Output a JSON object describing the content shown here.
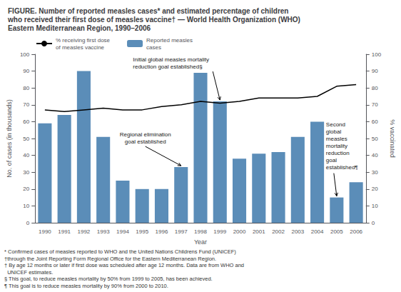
{
  "chart_data": {
    "type": "bar",
    "title": "FIGURE. Number of reported measles cases* and estimated percentage of children\nwho received their first dose of measles vaccine† — World Health Organization (WHO)\nEastern Mediterranean Region, 1990–2006",
    "categories": [
      "1990",
      "1991",
      "1992",
      "1993",
      "1994",
      "1995",
      "1996",
      "1997",
      "1998",
      "1999",
      "2000",
      "2001",
      "2002",
      "2003",
      "2004",
      "2005",
      "2006"
    ],
    "series": [
      {
        "name": "% receiving first dose\nof measles vaccine",
        "type": "line",
        "color": "#000000",
        "axis": "y2",
        "values": [
          67,
          66,
          67,
          68,
          67,
          67,
          69,
          70,
          72,
          71,
          72,
          74,
          74,
          74,
          75,
          81,
          82
        ]
      },
      {
        "name": "Reported measles\ncases",
        "type": "bar",
        "color": "#5b8db8",
        "values": [
          59,
          64,
          90,
          51,
          25,
          20,
          20,
          33,
          89,
          72,
          38,
          41,
          42,
          51,
          60,
          15,
          24
        ]
      }
    ],
    "xlabel": "Year",
    "ylabel": "No. of cases (in thousands)",
    "y2label": "% vaccinated",
    "ylim": [
      0,
      100
    ],
    "yticks": [
      0,
      10,
      20,
      30,
      40,
      50,
      60,
      70,
      80,
      90,
      100
    ],
    "y2lim": [
      0,
      100
    ],
    "y2ticks": [
      0,
      10,
      20,
      30,
      40,
      50,
      60,
      70,
      80,
      90,
      100
    ],
    "grid": false,
    "legend": "upper left",
    "annotations": [
      {
        "text": "Regional elimination\ngoal established",
        "x": "1997",
        "y": 33
      },
      {
        "text": "Initial global measles mortality\nreduction goal established§",
        "x": "1999",
        "y": 72
      },
      {
        "text": "Second\nglobal\nmeasles\nmortality\nreduction\ngoal\nestablished¶",
        "x": "2005",
        "y": 15
      }
    ],
    "footnotes": "* Confirmed cases of measles reported to WHO and the United Nations Childrens Fund (UNICEF)\n†through the Joint Reporting Form Regional Office for the Eastern Mediterranean Region.\n† By age 12 months or later if first dose was scheduled after age 12 months. Data are from WHO and\n  UNICEF estimates.\n§ This goal, to reduce measles mortality by 50% from 1999 to 2005, has been achieved.\n¶ This goal is to reduce measles mortality by 90% from 2000 to 2010."
  }
}
